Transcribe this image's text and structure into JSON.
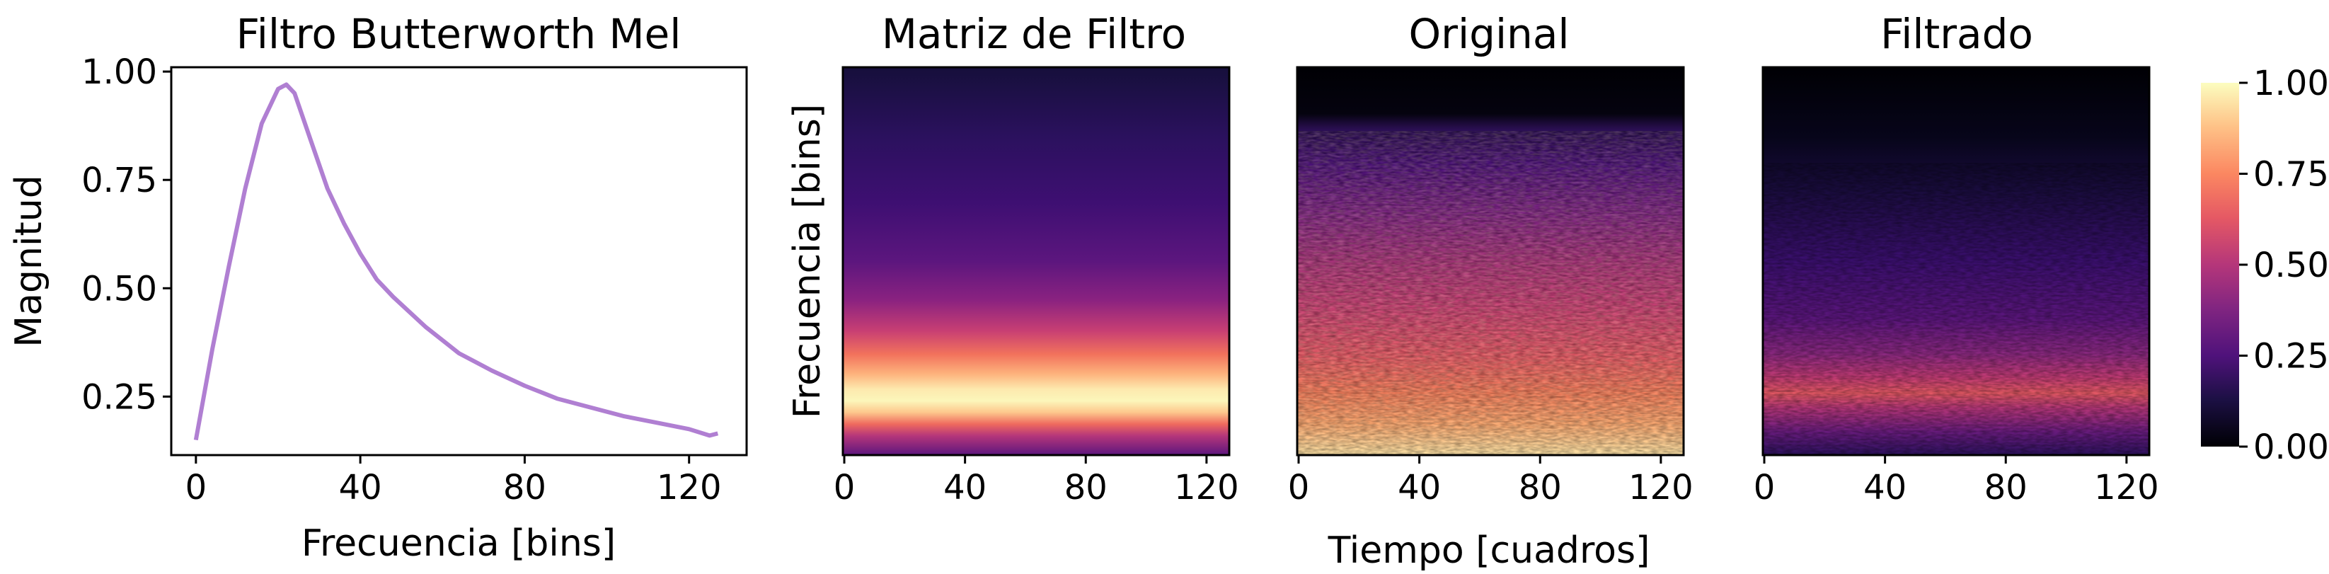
{
  "chart_data": [
    {
      "type": "line",
      "title": "Filtro Butterworth Mel",
      "xlabel": "Frecuencia [bins]",
      "ylabel": "Magnitud",
      "xlim": [
        -6,
        134
      ],
      "ylim": [
        0.115,
        1.01
      ],
      "xticks": [
        "0",
        "40",
        "80",
        "120"
      ],
      "yticks": [
        "0.25",
        "0.50",
        "0.75",
        "1.00"
      ],
      "grid": false,
      "color": "#b07fd2",
      "series": [
        {
          "x": [
            0,
            4,
            8,
            12,
            16,
            20,
            22,
            24,
            28,
            32,
            36,
            40,
            44,
            48,
            56,
            64,
            72,
            80,
            88,
            96,
            104,
            112,
            120,
            125,
            127
          ],
          "values": [
            0.15,
            0.36,
            0.55,
            0.73,
            0.88,
            0.96,
            0.97,
            0.95,
            0.84,
            0.73,
            0.65,
            0.58,
            0.52,
            0.48,
            0.41,
            0.35,
            0.31,
            0.275,
            0.245,
            0.225,
            0.205,
            0.19,
            0.175,
            0.16,
            0.165
          ]
        }
      ]
    },
    {
      "type": "heatmap",
      "title": "Matriz de Filtro",
      "ylabel": "Frecuencia [bins]",
      "xticks": [
        "0",
        "40",
        "80",
        "120"
      ],
      "xlim": [
        0,
        127
      ],
      "colormap": "magma",
      "note_values": "values constant across x; vertical profile from top to bottom",
      "profile": [
        0.07,
        0.08,
        0.1,
        0.12,
        0.15,
        0.18,
        0.22,
        0.27,
        0.33,
        0.42,
        0.55,
        0.7,
        0.85,
        0.97,
        1.0,
        0.93,
        0.7,
        0.4,
        0.18
      ]
    },
    {
      "type": "heatmap",
      "title": "Original",
      "xticks": [
        "0",
        "40",
        "80",
        "120"
      ],
      "xlim": [
        0,
        127
      ],
      "colormap": "magma"
    },
    {
      "type": "heatmap",
      "title": "Filtrado",
      "xticks": [
        "0",
        "40",
        "80",
        "120"
      ],
      "xlim": [
        0,
        127
      ],
      "colormap": "magma"
    }
  ],
  "shared_xlabel": "Tiempo [cuadros]",
  "colorbar": {
    "ticks": [
      "0.00",
      "0.25",
      "0.50",
      "0.75",
      "1.00"
    ],
    "range": [
      0,
      1
    ],
    "colormap": "magma"
  }
}
